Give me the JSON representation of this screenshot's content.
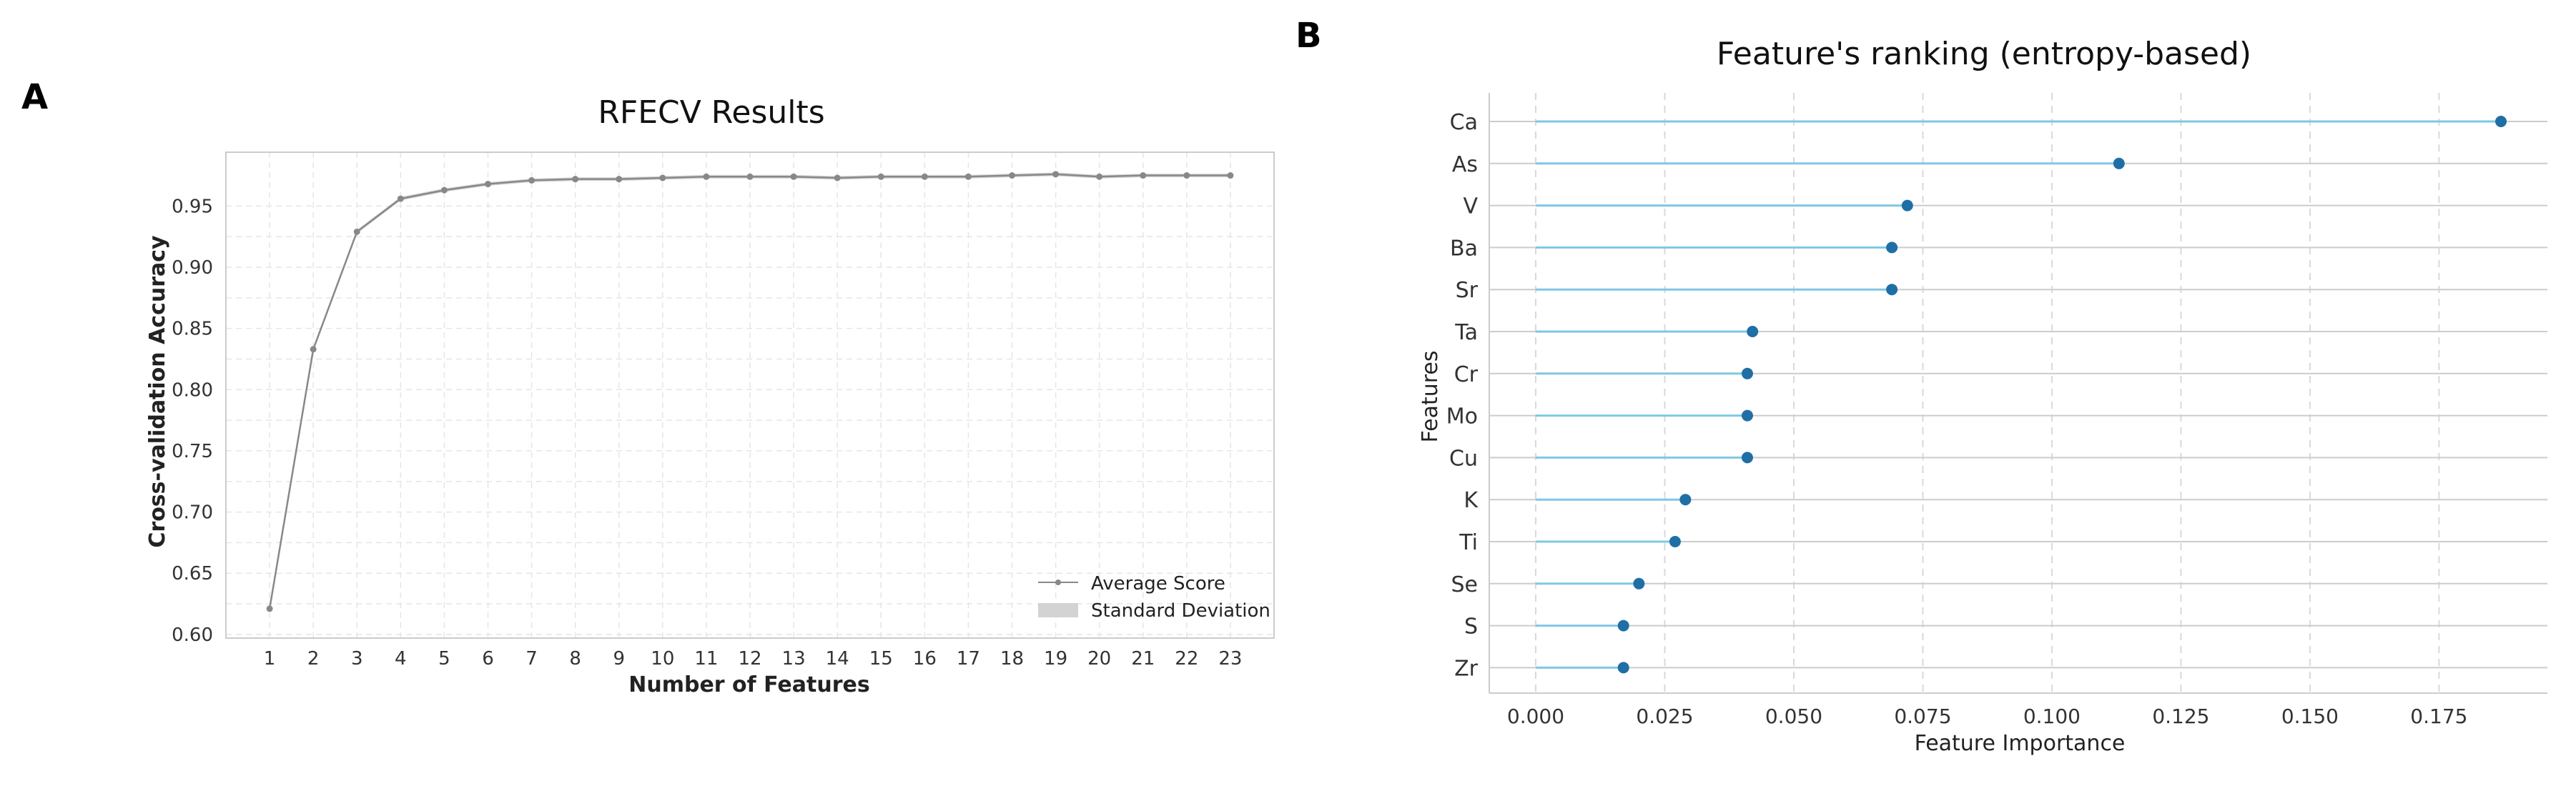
{
  "panels": {
    "a_label": "A",
    "b_label": "B"
  },
  "colors": {
    "rfecv_line": "#888888",
    "rfecv_band": "#d3d3d3",
    "lollipop_line": "#7ec8e3",
    "lollipop_dot": "#1f6fa6",
    "grid": "#e6e6e6",
    "row_line": "#cccccc"
  },
  "chart_data": [
    {
      "type": "line",
      "title": "RFECV Results",
      "xlabel": "Number of Features",
      "ylabel": "Cross-validation Accuracy",
      "x": [
        1,
        2,
        3,
        4,
        5,
        6,
        7,
        8,
        9,
        10,
        11,
        12,
        13,
        14,
        15,
        16,
        17,
        18,
        19,
        20,
        21,
        22,
        23
      ],
      "series": [
        {
          "name": "Average Score",
          "values": [
            0.621,
            0.833,
            0.929,
            0.956,
            0.963,
            0.968,
            0.971,
            0.972,
            0.972,
            0.973,
            0.974,
            0.974,
            0.974,
            0.973,
            0.974,
            0.974,
            0.974,
            0.975,
            0.976,
            0.974,
            0.975,
            0.975,
            0.975
          ]
        }
      ],
      "band": {
        "name": "Standard Deviation",
        "half_width": 0.0015
      },
      "xlim": [
        0,
        24
      ],
      "ylim": [
        0.597,
        0.994
      ],
      "yticks": [
        0.6,
        0.65,
        0.7,
        0.75,
        0.8,
        0.85,
        0.9,
        0.95
      ],
      "ytick_labels": [
        "0.60",
        "0.65",
        "0.70",
        "0.75",
        "0.80",
        "0.85",
        "0.90",
        "0.95"
      ],
      "xtick_labels": [
        "1",
        "2",
        "3",
        "4",
        "5",
        "6",
        "7",
        "8",
        "9",
        "10",
        "11",
        "12",
        "13",
        "14",
        "15",
        "16",
        "17",
        "18",
        "19",
        "20",
        "21",
        "22",
        "23"
      ],
      "grid": true,
      "legend": "lower-right"
    },
    {
      "type": "lollipop",
      "title": "Feature's ranking (entropy-based)",
      "xlabel": "Feature Importance",
      "ylabel": "Features",
      "categories": [
        "Ca",
        "As",
        "V",
        "Ba",
        "Sr",
        "Ta",
        "Cr",
        "Mo",
        "Cu",
        "K",
        "Ti",
        "Se",
        "S",
        "Zr"
      ],
      "values": [
        0.187,
        0.113,
        0.072,
        0.069,
        0.069,
        0.042,
        0.041,
        0.041,
        0.041,
        0.029,
        0.027,
        0.02,
        0.017,
        0.017
      ],
      "xlim": [
        -0.009,
        0.196
      ],
      "xticks": [
        0.0,
        0.025,
        0.05,
        0.075,
        0.1,
        0.125,
        0.15,
        0.175
      ],
      "xtick_labels": [
        "0.000",
        "0.025",
        "0.050",
        "0.075",
        "0.100",
        "0.125",
        "0.150",
        "0.175"
      ],
      "grid": true
    }
  ]
}
